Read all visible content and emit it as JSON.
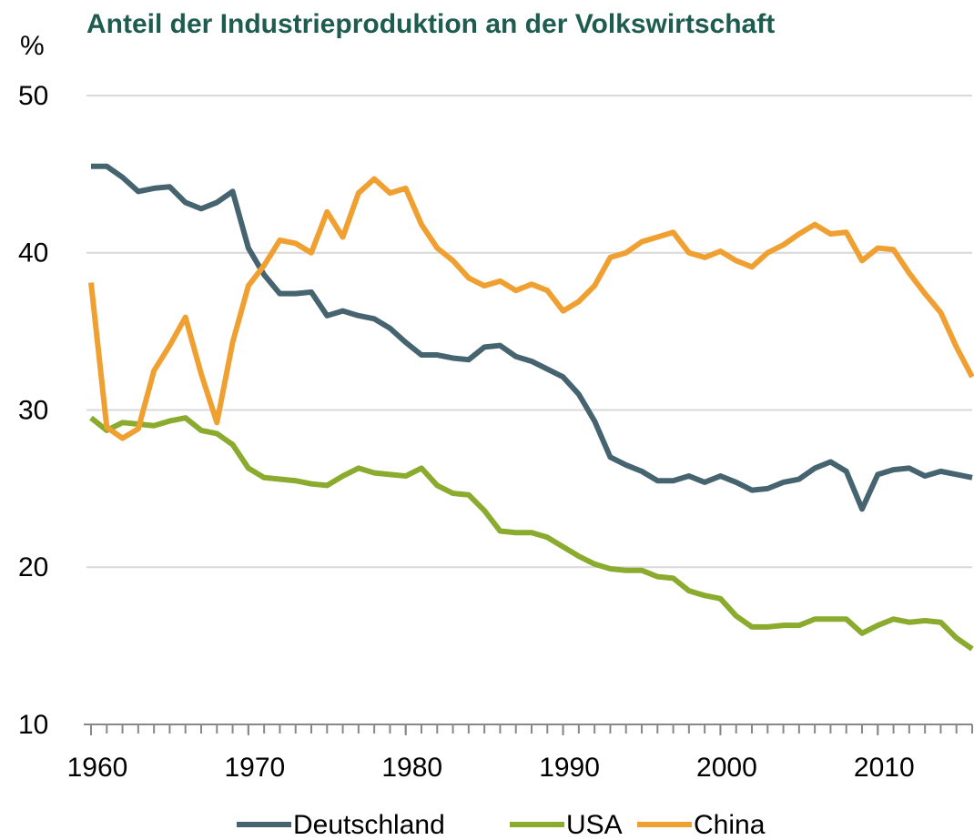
{
  "chart_data": {
    "type": "line",
    "title": "Anteil der Industrieproduktion an der Volkswirtschaft",
    "ylabel": "%",
    "x": [
      1960,
      1961,
      1962,
      1963,
      1964,
      1965,
      1966,
      1967,
      1968,
      1969,
      1970,
      1971,
      1972,
      1973,
      1974,
      1975,
      1976,
      1977,
      1978,
      1979,
      1980,
      1981,
      1982,
      1983,
      1984,
      1985,
      1986,
      1987,
      1988,
      1989,
      1990,
      1991,
      1992,
      1993,
      1994,
      1995,
      1996,
      1997,
      1998,
      1999,
      2000,
      2001,
      2002,
      2003,
      2004,
      2005,
      2006,
      2007,
      2008,
      2009,
      2010,
      2011,
      2012,
      2013,
      2014,
      2015,
      2016
    ],
    "series": [
      {
        "name": "Deutschland",
        "color": "#466470",
        "values": [
          45.5,
          45.5,
          44.8,
          43.9,
          44.1,
          44.2,
          43.2,
          42.8,
          43.2,
          43.9,
          40.3,
          38.6,
          37.4,
          37.4,
          37.5,
          36.0,
          36.3,
          36.0,
          35.8,
          35.2,
          34.3,
          33.5,
          33.5,
          33.3,
          33.2,
          34.0,
          34.1,
          33.4,
          33.1,
          32.6,
          32.1,
          31.0,
          29.3,
          27.0,
          26.5,
          26.1,
          25.5,
          25.5,
          25.8,
          25.4,
          25.8,
          25.4,
          24.9,
          25.0,
          25.4,
          25.6,
          26.3,
          26.7,
          26.1,
          23.7,
          25.9,
          26.2,
          26.3,
          25.8,
          26.1,
          25.9,
          25.7
        ]
      },
      {
        "name": "USA",
        "color": "#8aab2e",
        "values": [
          29.5,
          28.7,
          29.2,
          29.1,
          29.0,
          29.3,
          29.5,
          28.7,
          28.5,
          27.8,
          26.3,
          25.7,
          25.6,
          25.5,
          25.3,
          25.2,
          25.8,
          26.3,
          26.0,
          25.9,
          25.8,
          26.3,
          25.2,
          24.7,
          24.6,
          23.6,
          22.3,
          22.2,
          22.2,
          21.9,
          21.3,
          20.7,
          20.2,
          19.9,
          19.8,
          19.8,
          19.4,
          19.3,
          18.5,
          18.2,
          18.0,
          16.9,
          16.2,
          16.2,
          16.3,
          16.3,
          16.7,
          16.7,
          16.7,
          15.8,
          16.3,
          16.7,
          16.5,
          16.6,
          16.5,
          15.5,
          14.8
        ]
      },
      {
        "name": "China",
        "color": "#f0a030",
        "values": [
          38.1,
          28.9,
          28.2,
          28.8,
          32.5,
          34.1,
          35.9,
          32.3,
          29.2,
          34.3,
          37.9,
          39.2,
          40.8,
          40.6,
          40.0,
          42.6,
          41.0,
          43.8,
          44.7,
          43.8,
          44.1,
          41.8,
          40.3,
          39.5,
          38.4,
          37.9,
          38.2,
          37.6,
          38.0,
          37.6,
          36.3,
          36.9,
          37.9,
          39.7,
          40.0,
          40.7,
          41.0,
          41.3,
          40.0,
          39.7,
          40.1,
          39.5,
          39.1,
          40.0,
          40.5,
          41.2,
          41.8,
          41.2,
          41.3,
          39.5,
          40.3,
          40.2,
          38.7,
          37.4,
          36.2,
          34.0,
          32.1
        ]
      }
    ],
    "xlim": [
      1960,
      2016
    ],
    "xticks": [
      1960,
      1970,
      1980,
      1990,
      2000,
      2010
    ],
    "ylim": [
      10,
      50
    ],
    "yticks": [
      10,
      20,
      30,
      40,
      50
    ],
    "grid": true,
    "legend": "bottom"
  }
}
